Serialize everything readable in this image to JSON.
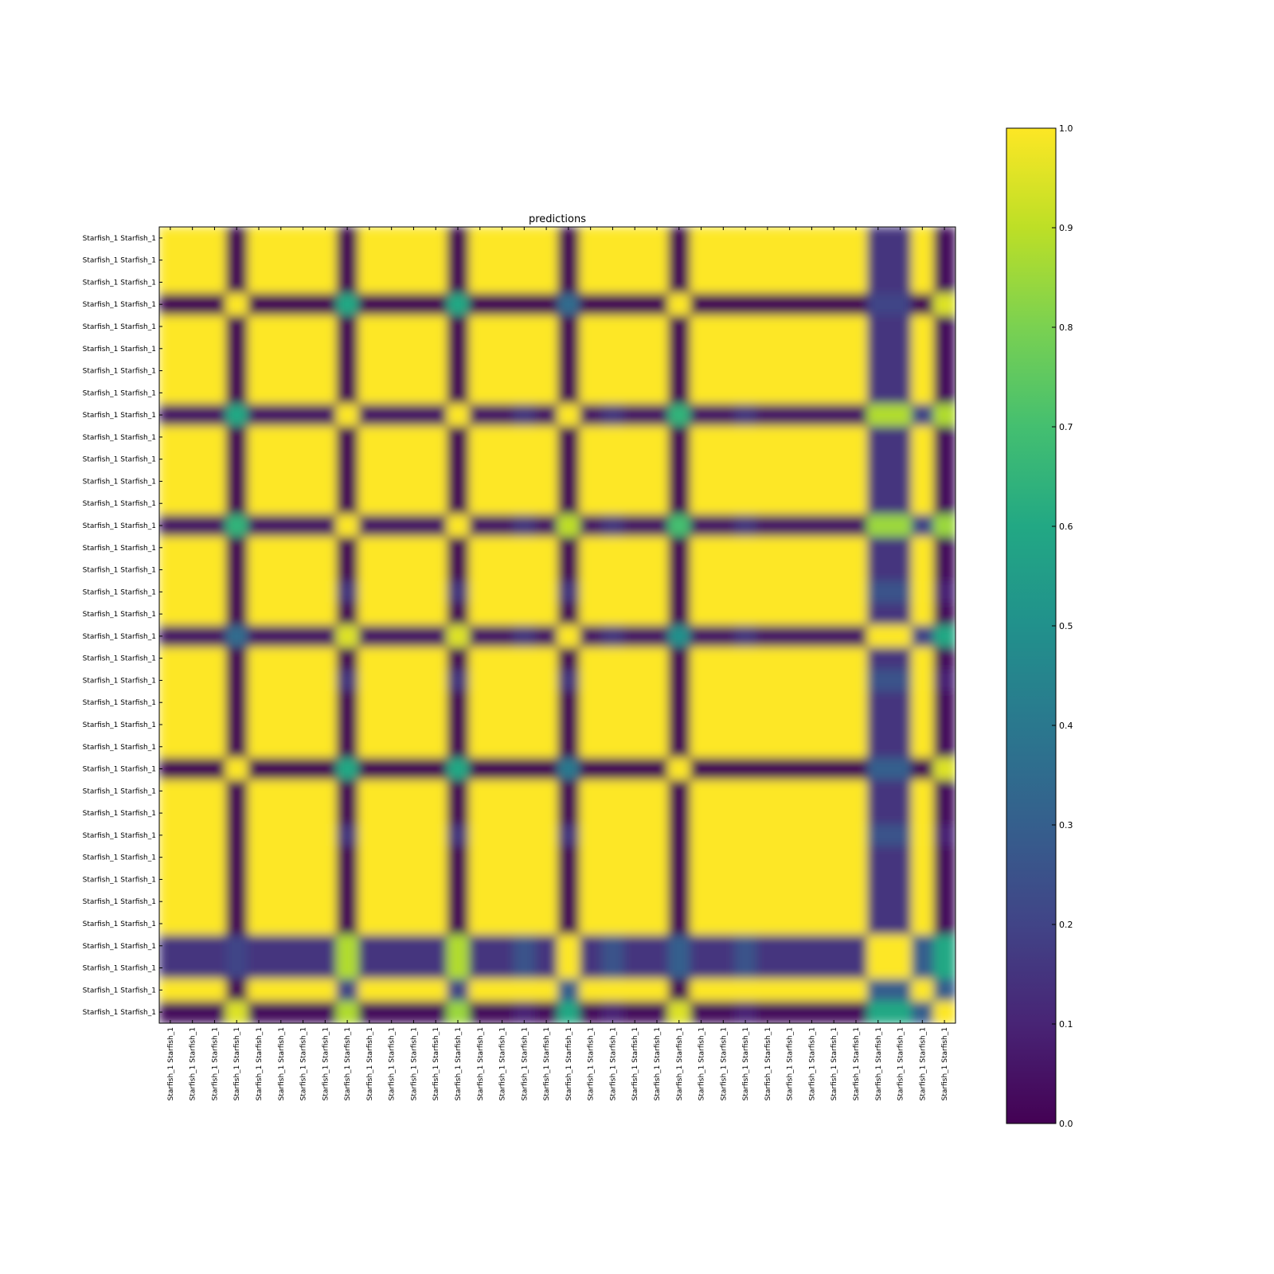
{
  "chart_data": {
    "type": "heatmap",
    "title": "predictions",
    "xlabel": "",
    "ylabel": "",
    "row_labels": [
      "Starfish_1 Starfish_1",
      "Starfish_1 Starfish_1",
      "Starfish_1 Starfish_1",
      "Starfish_1 Starfish_1",
      "Starfish_1 Starfish_1",
      "Starfish_1 Starfish_1",
      "Starfish_1 Starfish_1",
      "Starfish_1 Starfish_1",
      "Starfish_1 Starfish_1",
      "Starfish_1 Starfish_1",
      "Starfish_1 Starfish_1",
      "Starfish_1 Starfish_1",
      "Starfish_1 Starfish_1",
      "Starfish_1 Starfish_1",
      "Starfish_1 Starfish_1",
      "Starfish_1 Starfish_1",
      "Starfish_1 Starfish_1",
      "Starfish_1 Starfish_1",
      "Starfish_1 Starfish_1",
      "Starfish_1 Starfish_1",
      "Starfish_1 Starfish_1",
      "Starfish_1 Starfish_1",
      "Starfish_1 Starfish_1",
      "Starfish_1 Starfish_1",
      "Starfish_1 Starfish_1",
      "Starfish_1 Starfish_1",
      "Starfish_1 Starfish_1",
      "Starfish_1 Starfish_1",
      "Starfish_1 Starfish_1",
      "Starfish_1 Starfish_1",
      "Starfish_1 Starfish_1",
      "Starfish_1 Starfish_1",
      "Starfish_1 Starfish_1",
      "Starfish_1 Starfish_1",
      "Starfish_1 Starfish_1",
      "Starfish_1 Starfish_1"
    ],
    "col_labels": [
      "Starfish_1 Starfish_1",
      "Starfish_1 Starfish_1",
      "Starfish_1 Starfish_1",
      "Starfish_1 Starfish_1",
      "Starfish_1 Starfish_1",
      "Starfish_1 Starfish_1",
      "Starfish_1 Starfish_1",
      "Starfish_1 Starfish_1",
      "Starfish_1 Starfish_1",
      "Starfish_1 Starfish_1",
      "Starfish_1 Starfish_1",
      "Starfish_1 Starfish_1",
      "Starfish_1 Starfish_1",
      "Starfish_1 Starfish_1",
      "Starfish_1 Starfish_1",
      "Starfish_1 Starfish_1",
      "Starfish_1 Starfish_1",
      "Starfish_1 Starfish_1",
      "Starfish_1 Starfish_1",
      "Starfish_1 Starfish_1",
      "Starfish_1 Starfish_1",
      "Starfish_1 Starfish_1",
      "Starfish_1 Starfish_1",
      "Starfish_1 Starfish_1",
      "Starfish_1 Starfish_1",
      "Starfish_1 Starfish_1",
      "Starfish_1 Starfish_1",
      "Starfish_1 Starfish_1",
      "Starfish_1 Starfish_1",
      "Starfish_1 Starfish_1",
      "Starfish_1 Starfish_1",
      "Starfish_1 Starfish_1",
      "Starfish_1 Starfish_1",
      "Starfish_1 Starfish_1",
      "Starfish_1 Starfish_1",
      "Starfish_1 Starfish_1"
    ],
    "values": [
      [
        1,
        1,
        1,
        0,
        1,
        1,
        1,
        1,
        0,
        1,
        1,
        1,
        1,
        0,
        1,
        1,
        1,
        1,
        0,
        1,
        1,
        1,
        1,
        0,
        1,
        1,
        1,
        1,
        1,
        1,
        1,
        1,
        0.15,
        0.15,
        1,
        0.02
      ],
      [
        1,
        1,
        1,
        0,
        1,
        1,
        1,
        1,
        0,
        1,
        1,
        1,
        1,
        0,
        1,
        1,
        1,
        1,
        0,
        1,
        1,
        1,
        1,
        0,
        1,
        1,
        1,
        1,
        1,
        1,
        1,
        1,
        0.15,
        0.15,
        1,
        0.02
      ],
      [
        1,
        1,
        1,
        0,
        1,
        1,
        1,
        1,
        0,
        1,
        1,
        1,
        1,
        0,
        1,
        1,
        1,
        1,
        0,
        1,
        1,
        1,
        1,
        0,
        1,
        1,
        1,
        1,
        1,
        1,
        1,
        1,
        0.15,
        0.15,
        1,
        0.02
      ],
      [
        0,
        0,
        0,
        1,
        0,
        0,
        0,
        0,
        0.6,
        0,
        0,
        0,
        0,
        0.6,
        0,
        0,
        0,
        0,
        0.35,
        0,
        0,
        0,
        0,
        1,
        0,
        0,
        0,
        0,
        0,
        0,
        0,
        0,
        0.2,
        0.2,
        0,
        0.95
      ],
      [
        1,
        1,
        1,
        0,
        1,
        1,
        1,
        1,
        0,
        1,
        1,
        1,
        1,
        0,
        1,
        1,
        1,
        1,
        0,
        1,
        1,
        1,
        1,
        0,
        1,
        1,
        1,
        1,
        1,
        1,
        1,
        1,
        0.15,
        0.15,
        1,
        0.02
      ],
      [
        1,
        1,
        1,
        0,
        1,
        1,
        1,
        1,
        0,
        1,
        1,
        1,
        1,
        0,
        1,
        1,
        1,
        1,
        0,
        1,
        1,
        1,
        1,
        0,
        1,
        1,
        1,
        1,
        1,
        1,
        1,
        1,
        0.15,
        0.15,
        1,
        0.02
      ],
      [
        1,
        1,
        1,
        0,
        1,
        1,
        1,
        1,
        0,
        1,
        1,
        1,
        1,
        0,
        1,
        1,
        1,
        1,
        0,
        1,
        1,
        1,
        1,
        0,
        1,
        1,
        1,
        1,
        1,
        1,
        1,
        1,
        0.15,
        0.15,
        1,
        0.02
      ],
      [
        1,
        1,
        1,
        0,
        1,
        1,
        1,
        1,
        0,
        1,
        1,
        1,
        1,
        0,
        1,
        1,
        1,
        1,
        0,
        1,
        1,
        1,
        1,
        0,
        1,
        1,
        1,
        1,
        1,
        1,
        1,
        1,
        0.15,
        0.15,
        1,
        0.02
      ],
      [
        0.05,
        0.05,
        0.05,
        0.6,
        0.05,
        0.05,
        0.05,
        0.05,
        1,
        0.05,
        0.05,
        0.05,
        0.05,
        1,
        0.05,
        0.05,
        0.15,
        0.05,
        1,
        0.05,
        0.15,
        0.05,
        0.05,
        0.65,
        0.05,
        0.05,
        0.15,
        0.05,
        0.05,
        0.05,
        0.05,
        0.05,
        0.88,
        0.88,
        0.2,
        0.88
      ],
      [
        1,
        1,
        1,
        0,
        1,
        1,
        1,
        1,
        0,
        1,
        1,
        1,
        1,
        0,
        1,
        1,
        1,
        1,
        0,
        1,
        1,
        1,
        1,
        0,
        1,
        1,
        1,
        1,
        1,
        1,
        1,
        1,
        0.15,
        0.15,
        1,
        0.02
      ],
      [
        1,
        1,
        1,
        0,
        1,
        1,
        1,
        1,
        0,
        1,
        1,
        1,
        1,
        0,
        1,
        1,
        1,
        1,
        0,
        1,
        1,
        1,
        1,
        0,
        1,
        1,
        1,
        1,
        1,
        1,
        1,
        1,
        0.15,
        0.15,
        1,
        0.02
      ],
      [
        1,
        1,
        1,
        0,
        1,
        1,
        1,
        1,
        0,
        1,
        1,
        1,
        1,
        0,
        1,
        1,
        1,
        1,
        0,
        1,
        1,
        1,
        1,
        0,
        1,
        1,
        1,
        1,
        1,
        1,
        1,
        1,
        0.15,
        0.15,
        1,
        0.02
      ],
      [
        1,
        1,
        1,
        0,
        1,
        1,
        1,
        1,
        0,
        1,
        1,
        1,
        1,
        0,
        1,
        1,
        1,
        1,
        0,
        1,
        1,
        1,
        1,
        0,
        1,
        1,
        1,
        1,
        1,
        1,
        1,
        1,
        0.15,
        0.15,
        1,
        0.02
      ],
      [
        0.05,
        0.05,
        0.05,
        0.65,
        0.05,
        0.05,
        0.05,
        0.05,
        1,
        0.05,
        0.05,
        0.05,
        0.05,
        1,
        0.05,
        0.05,
        0.15,
        0.05,
        0.9,
        0.05,
        0.15,
        0.05,
        0.05,
        0.7,
        0.05,
        0.05,
        0.15,
        0.05,
        0.05,
        0.05,
        0.05,
        0.05,
        0.85,
        0.85,
        0.2,
        0.85
      ],
      [
        1,
        1,
        1,
        0,
        1,
        1,
        1,
        1,
        0,
        1,
        1,
        1,
        1,
        0,
        1,
        1,
        1,
        1,
        0,
        1,
        1,
        1,
        1,
        0,
        1,
        1,
        1,
        1,
        1,
        1,
        1,
        1,
        0.15,
        0.15,
        1,
        0.02
      ],
      [
        1,
        1,
        1,
        0,
        1,
        1,
        1,
        1,
        0,
        1,
        1,
        1,
        1,
        0,
        1,
        1,
        1,
        1,
        0,
        1,
        1,
        1,
        1,
        0,
        1,
        1,
        1,
        1,
        1,
        1,
        1,
        1,
        0.15,
        0.15,
        1,
        0.02
      ],
      [
        1,
        1,
        1,
        0,
        1,
        1,
        1,
        1,
        0.15,
        1,
        1,
        1,
        1,
        0.15,
        1,
        1,
        1,
        1,
        0.15,
        1,
        1,
        1,
        1,
        0,
        1,
        1,
        1,
        1,
        1,
        1,
        1,
        1,
        0.25,
        0.25,
        1,
        0.1
      ],
      [
        1,
        1,
        1,
        0,
        1,
        1,
        1,
        1,
        0,
        1,
        1,
        1,
        1,
        0,
        1,
        1,
        1,
        1,
        0,
        1,
        1,
        1,
        1,
        0,
        1,
        1,
        1,
        1,
        1,
        1,
        1,
        1,
        0.15,
        0.15,
        1,
        0.02
      ],
      [
        0.05,
        0.05,
        0.05,
        0.35,
        0.05,
        0.05,
        0.05,
        0.05,
        0.95,
        0.05,
        0.05,
        0.05,
        0.05,
        0.95,
        0.05,
        0.05,
        0.15,
        0.05,
        1,
        0.05,
        0.15,
        0.05,
        0.05,
        0.5,
        0.05,
        0.05,
        0.15,
        0.05,
        0.05,
        0.05,
        0.05,
        0.05,
        1,
        1,
        0.2,
        0.6
      ],
      [
        1,
        1,
        1,
        0,
        1,
        1,
        1,
        1,
        0,
        1,
        1,
        1,
        1,
        0,
        1,
        1,
        1,
        1,
        0,
        1,
        1,
        1,
        1,
        0,
        1,
        1,
        1,
        1,
        1,
        1,
        1,
        1,
        0.15,
        0.15,
        1,
        0.02
      ],
      [
        1,
        1,
        1,
        0,
        1,
        1,
        1,
        1,
        0.15,
        1,
        1,
        1,
        1,
        0.15,
        1,
        1,
        1,
        1,
        0.15,
        1,
        1,
        1,
        1,
        0,
        1,
        1,
        1,
        1,
        1,
        1,
        1,
        1,
        0.25,
        0.25,
        1,
        0.1
      ],
      [
        1,
        1,
        1,
        0,
        1,
        1,
        1,
        1,
        0,
        1,
        1,
        1,
        1,
        0,
        1,
        1,
        1,
        1,
        0,
        1,
        1,
        1,
        1,
        0,
        1,
        1,
        1,
        1,
        1,
        1,
        1,
        1,
        0.15,
        0.15,
        1,
        0.02
      ],
      [
        1,
        1,
        1,
        0,
        1,
        1,
        1,
        1,
        0,
        1,
        1,
        1,
        1,
        0,
        1,
        1,
        1,
        1,
        0,
        1,
        1,
        1,
        1,
        0,
        1,
        1,
        1,
        1,
        1,
        1,
        1,
        1,
        0.15,
        0.15,
        1,
        0.02
      ],
      [
        1,
        1,
        1,
        0,
        1,
        1,
        1,
        1,
        0,
        1,
        1,
        1,
        1,
        0,
        1,
        1,
        1,
        1,
        0,
        1,
        1,
        1,
        1,
        0,
        1,
        1,
        1,
        1,
        1,
        1,
        1,
        1,
        0.15,
        0.15,
        1,
        0.02
      ],
      [
        0,
        0,
        0,
        1,
        0,
        0,
        0,
        0,
        0.6,
        0,
        0,
        0,
        0,
        0.6,
        0,
        0,
        0,
        0,
        0.4,
        0,
        0,
        0,
        0,
        1,
        0,
        0,
        0,
        0,
        0,
        0,
        0,
        0,
        0.3,
        0.3,
        0,
        0.95
      ],
      [
        1,
        1,
        1,
        0,
        1,
        1,
        1,
        1,
        0,
        1,
        1,
        1,
        1,
        0,
        1,
        1,
        1,
        1,
        0,
        1,
        1,
        1,
        1,
        0,
        1,
        1,
        1,
        1,
        1,
        1,
        1,
        1,
        0.15,
        0.15,
        1,
        0.02
      ],
      [
        1,
        1,
        1,
        0,
        1,
        1,
        1,
        1,
        0,
        1,
        1,
        1,
        1,
        0,
        1,
        1,
        1,
        1,
        0,
        1,
        1,
        1,
        1,
        0,
        1,
        1,
        1,
        1,
        1,
        1,
        1,
        1,
        0.15,
        0.15,
        1,
        0.02
      ],
      [
        1,
        1,
        1,
        0,
        1,
        1,
        1,
        1,
        0.15,
        1,
        1,
        1,
        1,
        0.15,
        1,
        1,
        1,
        1,
        0.15,
        1,
        1,
        1,
        1,
        0,
        1,
        1,
        1,
        1,
        1,
        1,
        1,
        1,
        0.25,
        0.25,
        1,
        0.1
      ],
      [
        1,
        1,
        1,
        0,
        1,
        1,
        1,
        1,
        0,
        1,
        1,
        1,
        1,
        0,
        1,
        1,
        1,
        1,
        0,
        1,
        1,
        1,
        1,
        0,
        1,
        1,
        1,
        1,
        1,
        1,
        1,
        1,
        0.15,
        0.15,
        1,
        0.02
      ],
      [
        1,
        1,
        1,
        0,
        1,
        1,
        1,
        1,
        0,
        1,
        1,
        1,
        1,
        0,
        1,
        1,
        1,
        1,
        0,
        1,
        1,
        1,
        1,
        0,
        1,
        1,
        1,
        1,
        1,
        1,
        1,
        1,
        0.15,
        0.15,
        1,
        0.02
      ],
      [
        1,
        1,
        1,
        0,
        1,
        1,
        1,
        1,
        0,
        1,
        1,
        1,
        1,
        0,
        1,
        1,
        1,
        1,
        0,
        1,
        1,
        1,
        1,
        0,
        1,
        1,
        1,
        1,
        1,
        1,
        1,
        1,
        0.15,
        0.15,
        1,
        0.02
      ],
      [
        1,
        1,
        1,
        0,
        1,
        1,
        1,
        1,
        0,
        1,
        1,
        1,
        1,
        0,
        1,
        1,
        1,
        1,
        0,
        1,
        1,
        1,
        1,
        0,
        1,
        1,
        1,
        1,
        1,
        1,
        1,
        1,
        0.15,
        0.15,
        1,
        0.02
      ],
      [
        0.15,
        0.15,
        0.15,
        0.2,
        0.15,
        0.15,
        0.15,
        0.15,
        0.88,
        0.15,
        0.15,
        0.15,
        0.15,
        0.88,
        0.15,
        0.15,
        0.25,
        0.15,
        1,
        0.15,
        0.25,
        0.15,
        0.15,
        0.3,
        0.15,
        0.15,
        0.25,
        0.15,
        0.15,
        0.15,
        0.15,
        0.15,
        1,
        1,
        0.3,
        0.6
      ],
      [
        0.15,
        0.15,
        0.15,
        0.2,
        0.15,
        0.15,
        0.15,
        0.15,
        0.88,
        0.15,
        0.15,
        0.15,
        0.15,
        0.88,
        0.15,
        0.15,
        0.25,
        0.15,
        1,
        0.15,
        0.25,
        0.15,
        0.15,
        0.3,
        0.15,
        0.15,
        0.25,
        0.15,
        0.15,
        0.15,
        0.15,
        0.15,
        1,
        1,
        0.3,
        0.6
      ],
      [
        1,
        1,
        1,
        0,
        1,
        1,
        1,
        1,
        0.2,
        1,
        1,
        1,
        1,
        0.2,
        1,
        1,
        1,
        1,
        0.3,
        1,
        1,
        1,
        1,
        0,
        1,
        1,
        1,
        1,
        1,
        1,
        1,
        1,
        0.3,
        0.3,
        1,
        0.3
      ],
      [
        0.02,
        0.02,
        0.02,
        0.95,
        0.02,
        0.02,
        0.02,
        0.02,
        0.88,
        0.02,
        0.02,
        0.02,
        0.02,
        0.85,
        0.02,
        0.02,
        0.1,
        0.02,
        0.6,
        0.02,
        0.1,
        0.02,
        0.02,
        0.95,
        0.02,
        0.02,
        0.1,
        0.02,
        0.02,
        0.02,
        0.02,
        0.02,
        0.6,
        0.6,
        0.3,
        1
      ]
    ],
    "colorbar": {
      "colormap": "viridis",
      "range": [
        0.0,
        1.0
      ],
      "ticks": [
        "0.0",
        "0.1",
        "0.2",
        "0.3",
        "0.4",
        "0.5",
        "0.6",
        "0.7",
        "0.8",
        "0.9",
        "1.0"
      ]
    },
    "grid": false
  }
}
